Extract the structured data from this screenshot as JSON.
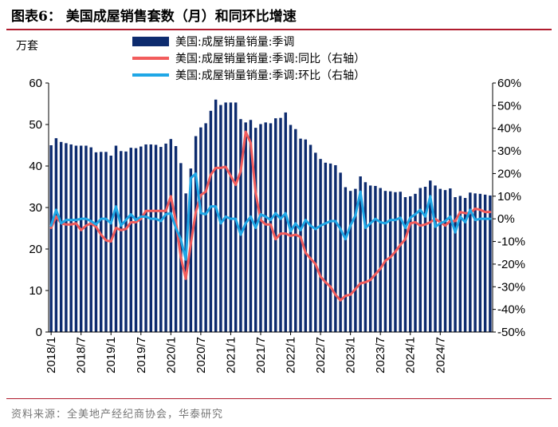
{
  "title": "图表6：  美国成屋销售套数（月）和同环比增速",
  "unit_label": "万套",
  "source": "资料来源：全美地产经纪商协会，华泰研究",
  "colors": {
    "bar": "#0d2b6e",
    "yoy": "#f25c5c",
    "mom": "#1fa7e6",
    "rule": "#b01c2e"
  },
  "chart_data": {
    "type": "bar+line",
    "title": "美国成屋销售套数（月）和同环比增速",
    "xlabel": "",
    "ylabel": "万套",
    "ylim": [
      0,
      60
    ],
    "y2lim": [
      -50,
      60
    ],
    "y_ticks": [
      "0",
      "10",
      "20",
      "30",
      "40",
      "50",
      "60"
    ],
    "y2_ticks": [
      "-50%",
      "-40%",
      "-30%",
      "-20%",
      "-10%",
      "0%",
      "10%",
      "20%",
      "30%",
      "40%",
      "50%",
      "60%"
    ],
    "x_ticks": [
      "2018/1",
      "2018/7",
      "2019/1",
      "2019/7",
      "2020/1",
      "2020/7",
      "2021/1",
      "2021/7",
      "2022/1",
      "2022/7",
      "2023/1",
      "2023/7",
      "2024/1",
      "2024/7"
    ],
    "legend": [
      "美国:成屋销量销量:季调",
      "美国:成屋销量销量:季调:同比（右轴）",
      "美国:成屋销量销量:季调:环比（右轴）"
    ],
    "categories_start": "2018/1",
    "series": [
      {
        "name": "美国:成屋销量销量:季调",
        "axis": "left",
        "type": "bar",
        "values": [
          45.0,
          46.7,
          45.8,
          45.5,
          45.2,
          44.9,
          44.9,
          44.9,
          44.5,
          43.3,
          43.4,
          43.4,
          42.5,
          44.9,
          43.6,
          43.5,
          44.4,
          44.3,
          44.7,
          45.2,
          45.2,
          45.1,
          44.6,
          45.4,
          46.5,
          44.8,
          40.7,
          33.4,
          39.4,
          47.2,
          49.3,
          50.3,
          53.3,
          56.0,
          54.7,
          55.3,
          55.3,
          55.3,
          51.3,
          50.5,
          51.1,
          49.2,
          50.1,
          50.5,
          50.3,
          51.5,
          51.6,
          52.9,
          49.9,
          48.9,
          46.6,
          46.4,
          45.1,
          43.2,
          41.7,
          40.8,
          40.6,
          40.2,
          38.4,
          34.9,
          34.0,
          34.5,
          37.5,
          36.1,
          35.3,
          35.2,
          34.7,
          34.0,
          33.9,
          33.7,
          33.8,
          32.5,
          32.7,
          33.3,
          34.7,
          35.0,
          36.5,
          35.3,
          34.5,
          34.2,
          34.6,
          32.5,
          32.8,
          32.3,
          33.6,
          33.4,
          33.3,
          33.1,
          32.9
        ]
      },
      {
        "name": "美国:成屋销量销量:季调:同比（右轴）",
        "axis": "right",
        "type": "line",
        "values": [
          -4.0,
          1.0,
          -2.0,
          -2.5,
          -2.5,
          -2.0,
          -5.0,
          -3.0,
          -2.0,
          -3.5,
          -7.0,
          -9.5,
          -10.0,
          -4.0,
          -5.0,
          -4.5,
          -1.5,
          -1.5,
          0.0,
          3.5,
          3.5,
          3.5,
          3.5,
          3.5,
          10.0,
          -1.0,
          -17.0,
          -26.5,
          -11.0,
          3.0,
          10.5,
          12.0,
          19.5,
          22.5,
          22.5,
          23.0,
          19.0,
          15.0,
          21.0,
          38.5,
          33.5,
          11.5,
          -0.5,
          -2.5,
          -2.5,
          -9.0,
          -6.5,
          -6.5,
          -7.5,
          -7.0,
          -8.0,
          -15.0,
          -17.5,
          -20.0,
          -25.5,
          -28.0,
          -30.0,
          -33.5,
          -36.0,
          -34.0,
          -33.5,
          -31.0,
          -28.5,
          -28.0,
          -27.0,
          -24.5,
          -22.0,
          -18.5,
          -17.0,
          -14.5,
          -11.5,
          -9.0,
          -2.0,
          -1.5,
          -3.0,
          -2.5,
          -1.5,
          0.0,
          -1.5,
          -3.0,
          -1.0,
          -1.0,
          3.0,
          2.5,
          2.5,
          4.5,
          4.0,
          3.0,
          3.0
        ]
      },
      {
        "name": "美国:成屋销量销量:季调:环比（右轴）",
        "axis": "right",
        "type": "line",
        "values": [
          -3.0,
          4.0,
          -2.0,
          -0.5,
          -0.5,
          -0.5,
          0.0,
          0.0,
          -1.0,
          -2.5,
          0.0,
          0.0,
          -2.0,
          5.5,
          -3.0,
          -0.5,
          2.0,
          -0.5,
          1.0,
          1.0,
          0.0,
          0.0,
          -1.0,
          2.0,
          2.5,
          -4.0,
          -9.0,
          -18.0,
          18.0,
          20.0,
          2.5,
          2.0,
          5.5,
          5.5,
          -2.0,
          1.0,
          0.0,
          0.0,
          -7.0,
          -2.0,
          1.0,
          -4.0,
          2.0,
          1.0,
          -0.5,
          2.5,
          0.0,
          2.5,
          -5.5,
          -2.0,
          -5.0,
          -0.5,
          -3.0,
          -4.5,
          -3.0,
          -2.0,
          -1.0,
          -1.0,
          -4.5,
          -9.0,
          -3.0,
          1.5,
          12.0,
          -4.0,
          -2.0,
          0.0,
          -1.5,
          -2.0,
          -0.5,
          -0.5,
          0.5,
          -4.0,
          0.5,
          2.0,
          4.0,
          1.0,
          10.0,
          -3.5,
          -2.0,
          -1.0,
          1.0,
          -6.0,
          1.0,
          -1.5,
          4.0,
          -0.5,
          0.0,
          0.0,
          0.0
        ]
      }
    ]
  }
}
